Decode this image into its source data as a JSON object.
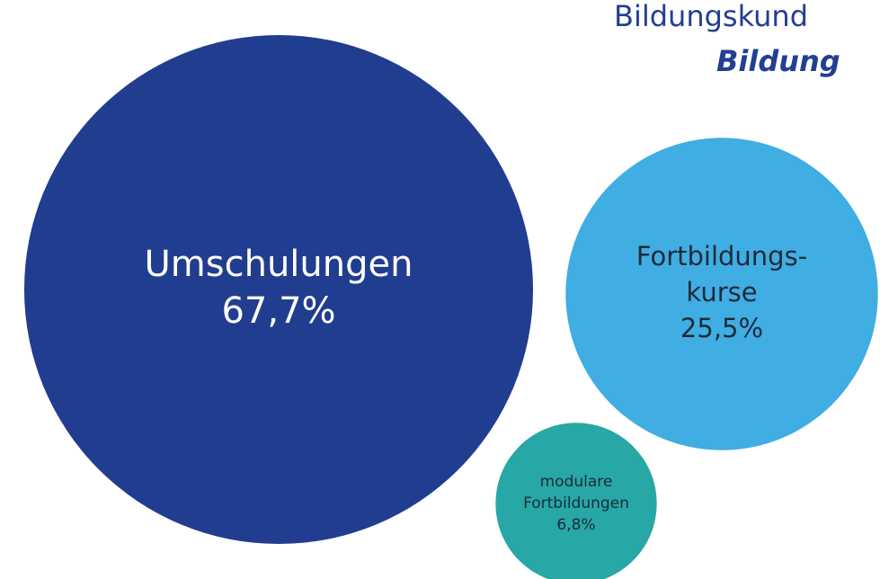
{
  "chart_data": {
    "type": "bubble",
    "title": [
      "Bildungskund",
      "Bildung"
    ],
    "categories": [
      [
        "Umschulungen"
      ],
      [
        "Fortbildungs-",
        "kurse"
      ],
      [
        "modulare",
        "Fortbildungen"
      ]
    ],
    "values": [
      67.7,
      25.5,
      6.8
    ],
    "value_labels": [
      "67,7%",
      "25,5%",
      "6,8%"
    ],
    "colors": [
      "#213d8f",
      "#40ade3",
      "#27a7a6"
    ]
  }
}
